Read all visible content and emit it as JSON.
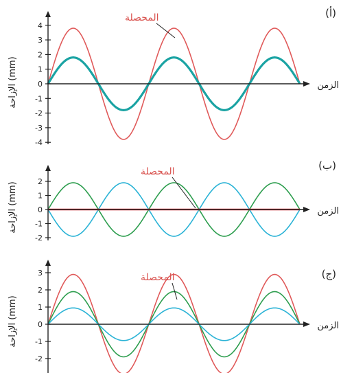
{
  "chart_data": [
    {
      "type": "line",
      "panel_label": "(أ)",
      "xlabel": "الزمن",
      "ylabel": "الإزاحة (mm)",
      "ylim": [
        -4,
        4
      ],
      "yticks": [
        -4,
        -3,
        -2,
        -1,
        0,
        1,
        2,
        3,
        4
      ],
      "cycles": 2.5,
      "series": [
        {
          "name": "المحصلة",
          "amplitude": 3.8,
          "phase_deg": 0,
          "color": "#e05a5a",
          "width": 1.6
        },
        {
          "name": "",
          "amplitude": 1.8,
          "phase_deg": 0,
          "color": "#1aa3a3",
          "width": 3.2
        }
      ],
      "annotation": "المحصلة"
    },
    {
      "type": "line",
      "panel_label": "(ب)",
      "xlabel": "الزمن",
      "ylabel": "الإزاحة (mm)",
      "ylim": [
        -2,
        2
      ],
      "yticks": [
        -2,
        -1,
        0,
        1,
        2
      ],
      "cycles": 2.5,
      "series": [
        {
          "name": "",
          "amplitude": 1.9,
          "phase_deg": 0,
          "color": "#2e9e4f",
          "width": 1.6
        },
        {
          "name": "",
          "amplitude": 1.9,
          "phase_deg": 180,
          "color": "#2bb3d6",
          "width": 1.6
        },
        {
          "name": "المحصلة",
          "amplitude": 0,
          "phase_deg": 0,
          "color": "#d9363e",
          "width": 2.4
        }
      ],
      "annotation": "المحصلة"
    },
    {
      "type": "line",
      "panel_label": "(ج)",
      "xlabel": "الزمن",
      "ylabel": "الإزاحة (mm)",
      "ylim": [
        -3,
        3
      ],
      "yticks": [
        -3,
        -2,
        -1,
        0,
        1,
        2,
        3
      ],
      "cycles": 2.5,
      "series": [
        {
          "name": "المحصلة",
          "amplitude": 2.9,
          "phase_deg": 0,
          "color": "#e05a5a",
          "width": 1.6
        },
        {
          "name": "",
          "amplitude": 1.9,
          "phase_deg": 0,
          "color": "#2e9e4f",
          "width": 1.6
        },
        {
          "name": "",
          "amplitude": 0.95,
          "phase_deg": 0,
          "color": "#2bb3d6",
          "width": 1.6
        }
      ],
      "annotation": "المحصلة"
    }
  ]
}
